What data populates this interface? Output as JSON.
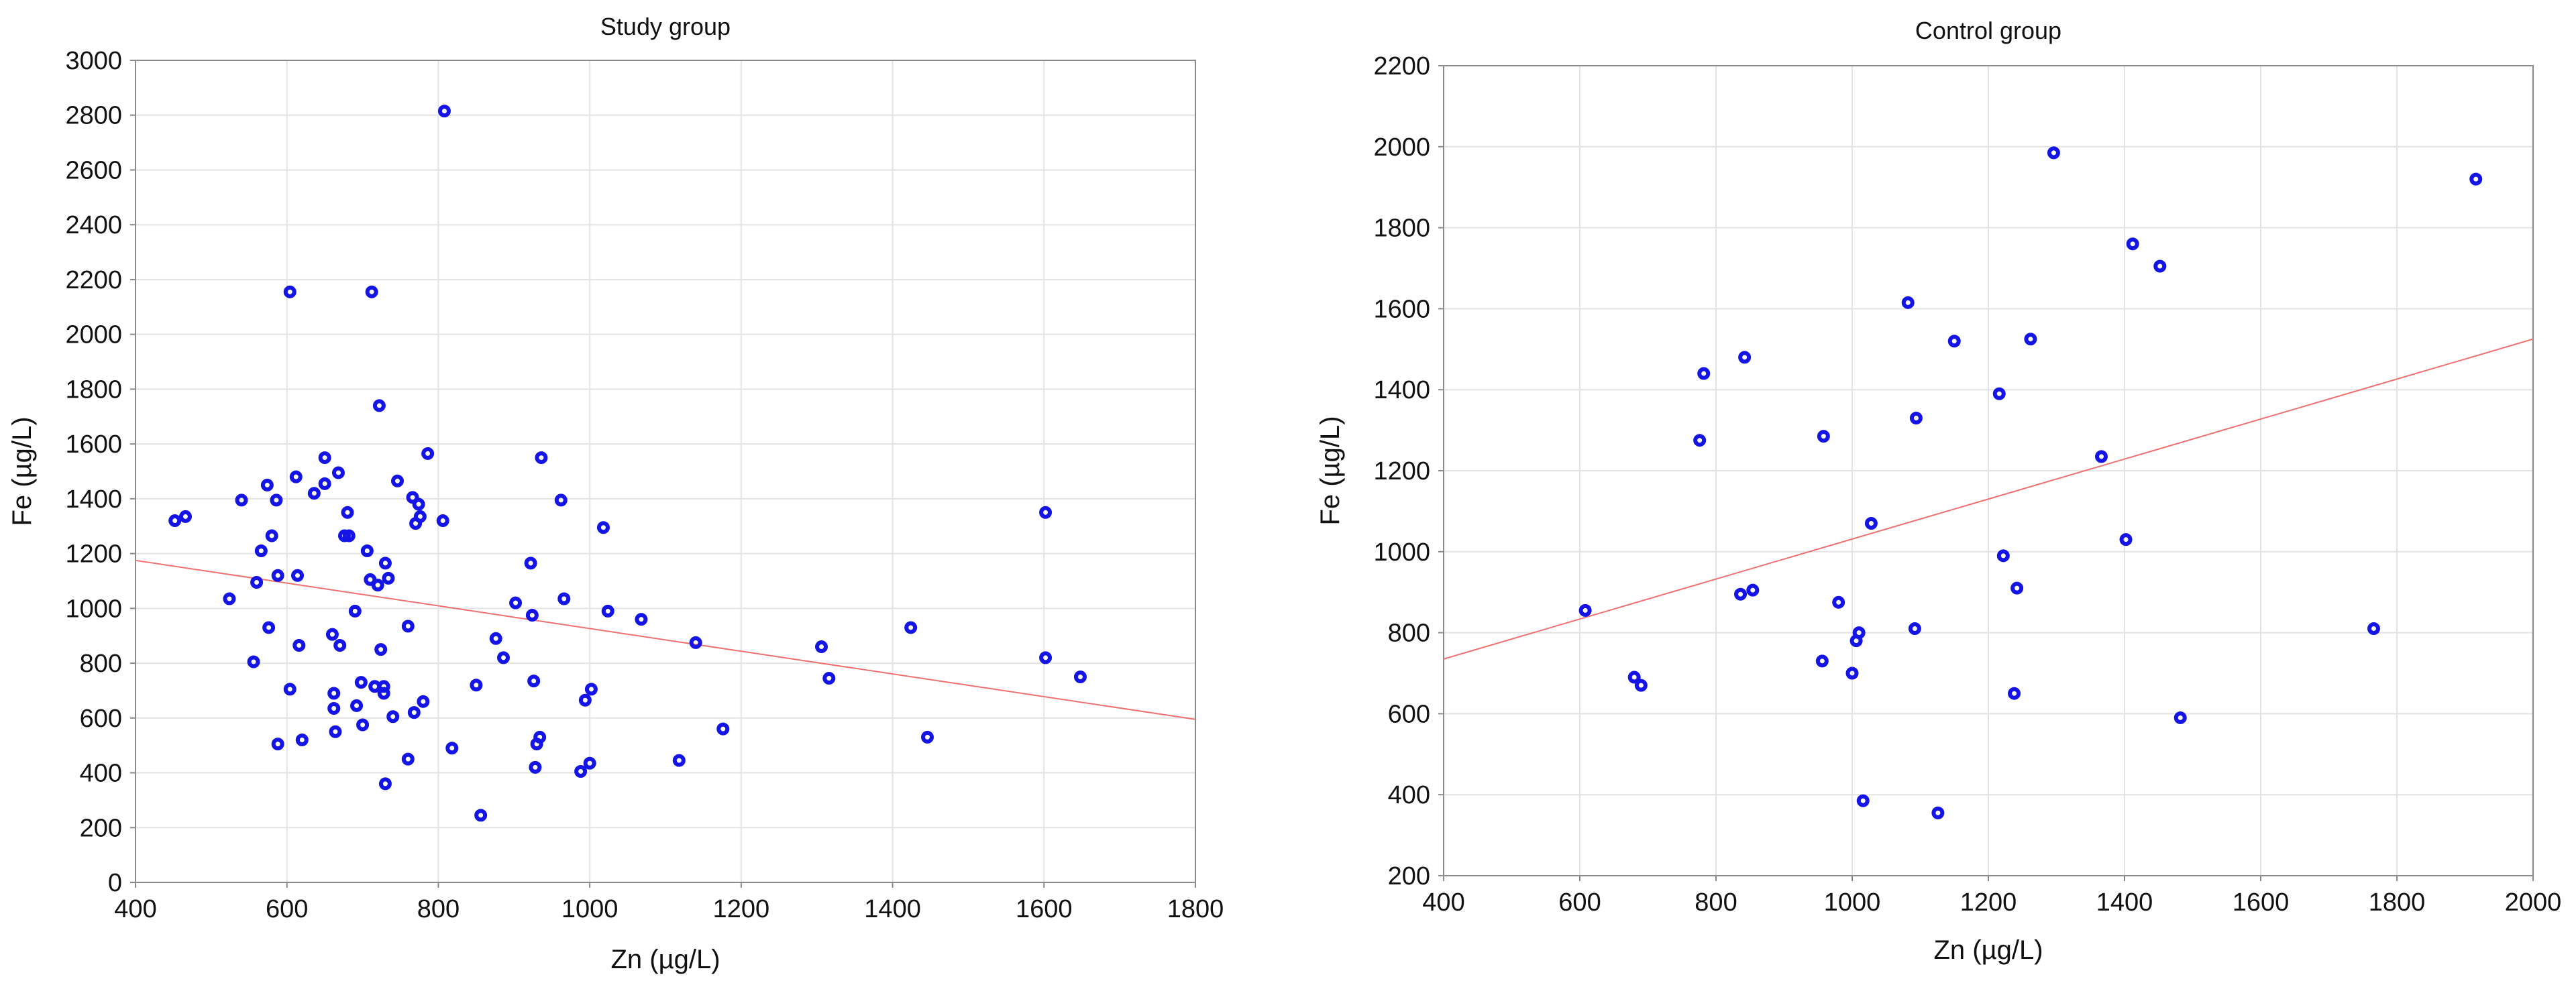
{
  "colors": {
    "points": "#1414e6",
    "trend": "#f07070"
  },
  "chart_data": [
    {
      "type": "scatter",
      "title": "Study group",
      "xlabel": "Zn (µg/L)",
      "ylabel": "Fe (µg/L)",
      "xlim": [
        400,
        1800
      ],
      "ylim": [
        0,
        3000
      ],
      "xticks": [
        400,
        600,
        800,
        1000,
        1200,
        1400,
        1600,
        1800
      ],
      "yticks": [
        0,
        200,
        400,
        600,
        800,
        1000,
        1200,
        1400,
        1600,
        1800,
        2000,
        2200,
        2400,
        2600,
        2800,
        3000
      ],
      "grid": true,
      "trendline": {
        "x": [
          400,
          1800
        ],
        "y": [
          1175,
          595
        ]
      },
      "points": [
        [
          452,
          1320
        ],
        [
          466,
          1335
        ],
        [
          524,
          1035
        ],
        [
          540,
          1395
        ],
        [
          556,
          805
        ],
        [
          560,
          1095
        ],
        [
          566,
          1210
        ],
        [
          574,
          1450
        ],
        [
          576,
          930
        ],
        [
          580,
          1265
        ],
        [
          588,
          505
        ],
        [
          588,
          1120
        ],
        [
          586,
          1395
        ],
        [
          604,
          2155
        ],
        [
          604,
          705
        ],
        [
          612,
          1480
        ],
        [
          614,
          1120
        ],
        [
          616,
          865
        ],
        [
          620,
          520
        ],
        [
          636,
          1420
        ],
        [
          650,
          1455
        ],
        [
          650,
          1550
        ],
        [
          660,
          905
        ],
        [
          662,
          690
        ],
        [
          662,
          635
        ],
        [
          664,
          550
        ],
        [
          668,
          1495
        ],
        [
          670,
          865
        ],
        [
          676,
          1265
        ],
        [
          682,
          1265
        ],
        [
          680,
          1350
        ],
        [
          690,
          990
        ],
        [
          692,
          645
        ],
        [
          698,
          730
        ],
        [
          700,
          575
        ],
        [
          706,
          1210
        ],
        [
          710,
          1105
        ],
        [
          712,
          2155
        ],
        [
          716,
          715
        ],
        [
          720,
          1085
        ],
        [
          722,
          1740
        ],
        [
          724,
          850
        ],
        [
          728,
          715
        ],
        [
          728,
          690
        ],
        [
          730,
          1165
        ],
        [
          730,
          360
        ],
        [
          734,
          1110
        ],
        [
          740,
          605
        ],
        [
          746,
          1465
        ],
        [
          760,
          935
        ],
        [
          760,
          450
        ],
        [
          766,
          1405
        ],
        [
          768,
          620
        ],
        [
          770,
          1310
        ],
        [
          774,
          1380
        ],
        [
          776,
          1335
        ],
        [
          780,
          660
        ],
        [
          786,
          1565
        ],
        [
          806,
          1320
        ],
        [
          808,
          2815
        ],
        [
          818,
          490
        ],
        [
          850,
          720
        ],
        [
          856,
          245
        ],
        [
          876,
          890
        ],
        [
          886,
          820
        ],
        [
          902,
          1020
        ],
        [
          922,
          1165
        ],
        [
          924,
          975
        ],
        [
          926,
          735
        ],
        [
          928,
          420
        ],
        [
          930,
          505
        ],
        [
          934,
          530
        ],
        [
          936,
          1550
        ],
        [
          962,
          1395
        ],
        [
          966,
          1035
        ],
        [
          988,
          405
        ],
        [
          994,
          665
        ],
        [
          1000,
          435
        ],
        [
          1002,
          705
        ],
        [
          1018,
          1295
        ],
        [
          1024,
          990
        ],
        [
          1068,
          960
        ],
        [
          1118,
          445
        ],
        [
          1140,
          875
        ],
        [
          1176,
          560
        ],
        [
          1306,
          860
        ],
        [
          1316,
          745
        ],
        [
          1424,
          930
        ],
        [
          1446,
          530
        ],
        [
          1602,
          1350
        ],
        [
          1602,
          820
        ],
        [
          1648,
          750
        ]
      ]
    },
    {
      "type": "scatter",
      "title": "Control group",
      "xlabel": "Zn (µg/L)",
      "ylabel": "Fe (µg/L)",
      "xlim": [
        400,
        2000
      ],
      "ylim": [
        200,
        2200
      ],
      "xticks": [
        400,
        600,
        800,
        1000,
        1200,
        1400,
        1600,
        1800,
        2000
      ],
      "yticks": [
        200,
        400,
        600,
        800,
        1000,
        1200,
        1400,
        1600,
        1800,
        2000,
        2200
      ],
      "grid": true,
      "trendline": {
        "x": [
          400,
          2000
        ],
        "y": [
          735,
          1525
        ]
      },
      "points": [
        [
          608,
          855
        ],
        [
          680,
          690
        ],
        [
          690,
          670
        ],
        [
          776,
          1275
        ],
        [
          782,
          1440
        ],
        [
          836,
          895
        ],
        [
          842,
          1480
        ],
        [
          854,
          905
        ],
        [
          956,
          730
        ],
        [
          958,
          1285
        ],
        [
          980,
          875
        ],
        [
          1000,
          700
        ],
        [
          1006,
          780
        ],
        [
          1010,
          800
        ],
        [
          1016,
          385
        ],
        [
          1028,
          1070
        ],
        [
          1082,
          1615
        ],
        [
          1092,
          810
        ],
        [
          1094,
          1330
        ],
        [
          1126,
          355
        ],
        [
          1150,
          1520
        ],
        [
          1216,
          1390
        ],
        [
          1222,
          990
        ],
        [
          1238,
          650
        ],
        [
          1242,
          910
        ],
        [
          1262,
          1525
        ],
        [
          1296,
          1985
        ],
        [
          1366,
          1235
        ],
        [
          1402,
          1030
        ],
        [
          1412,
          1760
        ],
        [
          1452,
          1705
        ],
        [
          1482,
          590
        ],
        [
          1766,
          810
        ],
        [
          1916,
          1920
        ]
      ]
    }
  ]
}
